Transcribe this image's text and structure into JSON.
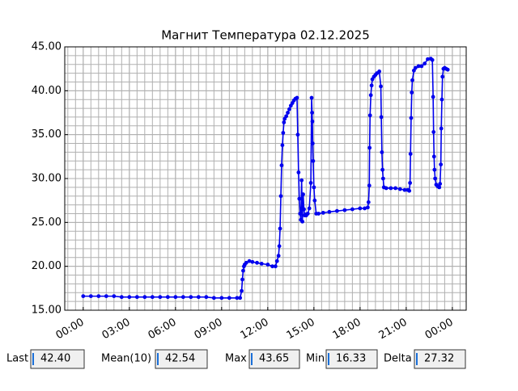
{
  "chart_data": {
    "type": "line",
    "title": "Магнит Температура 02.12.2025",
    "x": [
      0,
      0.5,
      1,
      1.5,
      2,
      2.5,
      3,
      3.5,
      4,
      4.5,
      5,
      5.5,
      6,
      6.5,
      7,
      7.5,
      8,
      8.5,
      9,
      9.5,
      10,
      10.2,
      10.3,
      10.35,
      10.4,
      10.45,
      10.5,
      10.6,
      10.8,
      11,
      11.3,
      11.6,
      12,
      12.3,
      12.5,
      12.6,
      12.7,
      12.75,
      12.8,
      12.85,
      12.9,
      12.95,
      13.0,
      13.05,
      13.1,
      13.2,
      13.3,
      13.4,
      13.5,
      13.6,
      13.7,
      13.8,
      13.9,
      13.95,
      14.0,
      14.05,
      14.1,
      14.15,
      14.2,
      14.25,
      14.3,
      14.35,
      14.4,
      14.45,
      14.5,
      14.6,
      14.7,
      14.8,
      14.85,
      14.88,
      14.9,
      14.92,
      14.95,
      15.0,
      15.05,
      15.15,
      15.3,
      15.6,
      16,
      16.5,
      17,
      17.5,
      18,
      18.3,
      18.5,
      18.55,
      18.6,
      18.62,
      18.65,
      18.7,
      18.75,
      18.8,
      18.9,
      19.0,
      19.1,
      19.25,
      19.35,
      19.38,
      19.42,
      19.46,
      19.5,
      19.55,
      19.7,
      20,
      20.3,
      20.6,
      20.9,
      21.1,
      21.2,
      21.25,
      21.28,
      21.32,
      21.36,
      21.4,
      21.5,
      21.6,
      21.8,
      22,
      22.2,
      22.4,
      22.6,
      22.7,
      22.75,
      22.78,
      22.81,
      22.84,
      22.88,
      22.95,
      23.05,
      23.15,
      23.2,
      23.25,
      23.28,
      23.32,
      23.36,
      23.42,
      23.5,
      23.6,
      23.7
    ],
    "series": [
      {
        "name": "Магнит",
        "color": "#0000ee",
        "values": [
          16.6,
          16.6,
          16.6,
          16.6,
          16.6,
          16.5,
          16.5,
          16.5,
          16.5,
          16.5,
          16.5,
          16.5,
          16.5,
          16.5,
          16.5,
          16.5,
          16.5,
          16.4,
          16.4,
          16.4,
          16.4,
          16.4,
          17.2,
          18.5,
          19.5,
          20.0,
          20.2,
          20.4,
          20.6,
          20.5,
          20.4,
          20.3,
          20.2,
          20.0,
          20.0,
          20.6,
          21.2,
          22.3,
          24.3,
          28.0,
          31.5,
          33.8,
          35.2,
          36.4,
          36.8,
          37.1,
          37.5,
          37.9,
          38.3,
          38.6,
          38.9,
          39.1,
          39.2,
          35.0,
          30.7,
          27.7,
          26.0,
          25.3,
          29.8,
          25.1,
          28.2,
          26.5,
          25.8,
          25.9,
          25.8,
          26.0,
          26.6,
          29.5,
          39.2,
          37.5,
          36.5,
          34.0,
          32.0,
          29.0,
          27.5,
          26.0,
          26.0,
          26.1,
          26.2,
          26.3,
          26.4,
          26.5,
          26.6,
          26.6,
          26.7,
          27.3,
          29.2,
          33.5,
          37.2,
          39.5,
          40.6,
          41.3,
          41.6,
          41.8,
          42.0,
          42.2,
          40.5,
          37.0,
          33.0,
          31.0,
          30.0,
          29.0,
          28.9,
          28.9,
          28.9,
          28.8,
          28.7,
          28.7,
          28.6,
          29.5,
          32.8,
          36.9,
          39.8,
          41.2,
          42.3,
          42.6,
          42.8,
          42.8,
          43.1,
          43.6,
          43.65,
          43.5,
          39.3,
          35.3,
          32.5,
          31.0,
          30.0,
          29.3,
          29.1,
          29.0,
          29.4,
          31.6,
          35.7,
          39.0,
          41.6,
          42.5,
          42.6,
          42.5,
          42.4
        ]
      }
    ],
    "xlim": [
      -1.2,
      24.9
    ],
    "ylim": [
      15,
      45
    ],
    "xticks": [
      {
        "value": 0,
        "label": "00:00"
      },
      {
        "value": 3,
        "label": "03:00"
      },
      {
        "value": 6,
        "label": "06:00"
      },
      {
        "value": 9,
        "label": "09:00"
      },
      {
        "value": 12,
        "label": "12:00"
      },
      {
        "value": 15,
        "label": "15:00"
      },
      {
        "value": 18,
        "label": "18:00"
      },
      {
        "value": 21,
        "label": "21:00"
      },
      {
        "value": 24,
        "label": "00:00"
      }
    ],
    "yticks": [
      {
        "value": 15,
        "label": "15.00"
      },
      {
        "value": 20,
        "label": "20.00"
      },
      {
        "value": 25,
        "label": "25.00"
      },
      {
        "value": 30,
        "label": "30.00"
      },
      {
        "value": 35,
        "label": "35.00"
      },
      {
        "value": 40,
        "label": "40.00"
      },
      {
        "value": 45,
        "label": "45.00"
      }
    ],
    "grid": true,
    "x_minor_step": 0.5,
    "y_minor_step": 1
  },
  "fields": [
    {
      "label": "Last",
      "value": "42.40"
    },
    {
      "label": "Mean(10)",
      "value": "42.54"
    },
    {
      "label": "Max",
      "value": "43.65"
    },
    {
      "label": "Min",
      "value": "16.33"
    },
    {
      "label": "Delta",
      "value": "27.32"
    }
  ]
}
